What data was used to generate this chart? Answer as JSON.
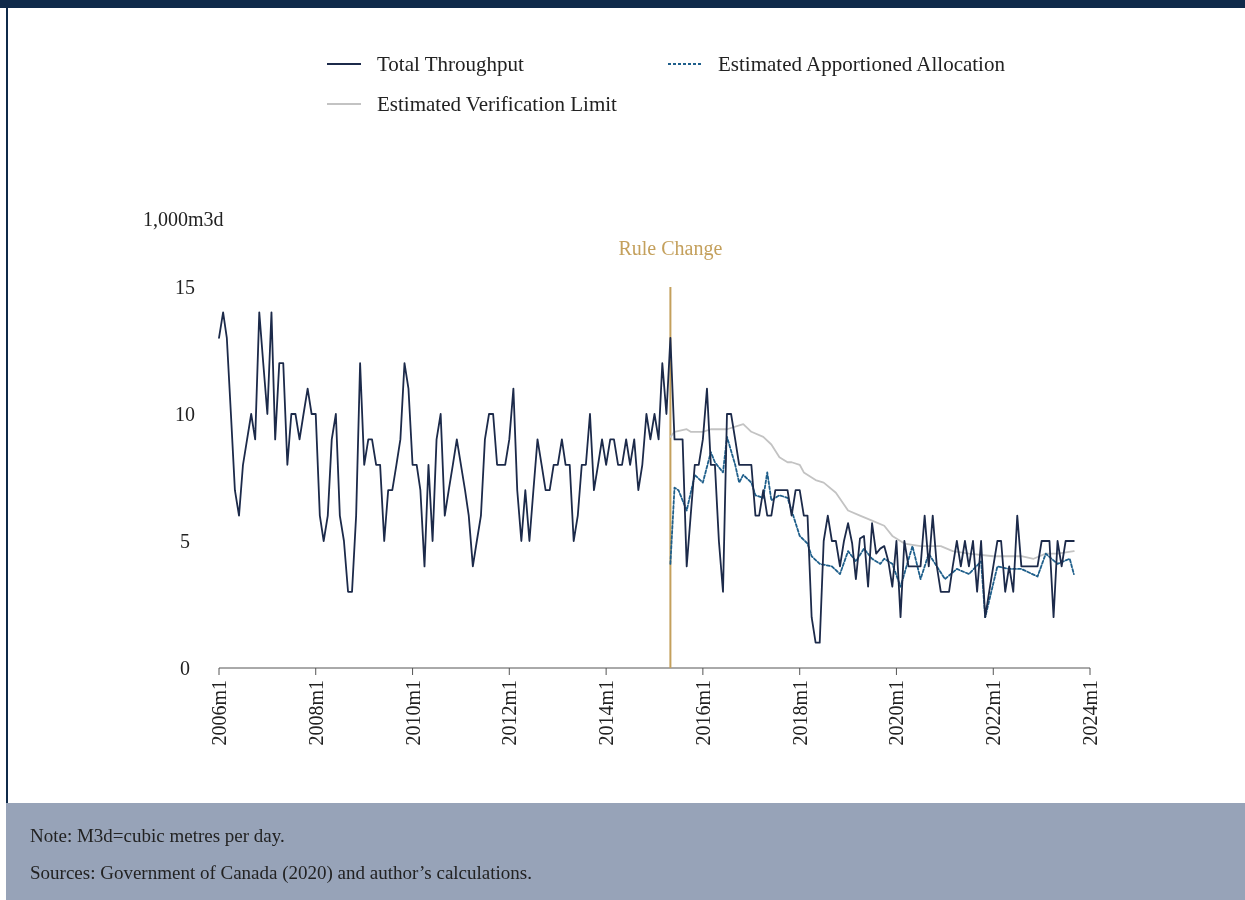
{
  "chart_data": {
    "type": "line",
    "ylabel": "1,000m3d",
    "legend": "top",
    "grid": false,
    "line_style": "solid",
    "marker": "none",
    "xlim": [
      "2006-01",
      "2024-01"
    ],
    "xticks": [
      {
        "value": "2006-01",
        "label": "2006m1"
      },
      {
        "value": "2008-01",
        "label": "2008m1"
      },
      {
        "value": "2010-01",
        "label": "2010m1"
      },
      {
        "value": "2012-01",
        "label": "2012m1"
      },
      {
        "value": "2014-01",
        "label": "2014m1"
      },
      {
        "value": "2016-01",
        "label": "2016m1"
      },
      {
        "value": "2018-01",
        "label": "2018m1"
      },
      {
        "value": "2020-01",
        "label": "2020m1"
      },
      {
        "value": "2022-01",
        "label": "2022m1"
      },
      {
        "value": "2024-01",
        "label": "2024m1"
      }
    ],
    "ylim": [
      0,
      15
    ],
    "yticks": [
      0,
      5,
      10,
      15
    ],
    "x": [
      "2006-01",
      "2006-02",
      "2006-03",
      "2006-04",
      "2006-05",
      "2006-06",
      "2006-07",
      "2006-08",
      "2006-09",
      "2006-10",
      "2006-11",
      "2006-12",
      "2007-01",
      "2007-02",
      "2007-03",
      "2007-04",
      "2007-05",
      "2007-06",
      "2007-07",
      "2007-08",
      "2007-09",
      "2007-10",
      "2007-11",
      "2007-12",
      "2008-01",
      "2008-02",
      "2008-03",
      "2008-04",
      "2008-05",
      "2008-06",
      "2008-07",
      "2008-08",
      "2008-09",
      "2008-10",
      "2008-11",
      "2008-12",
      "2009-01",
      "2009-02",
      "2009-03",
      "2009-04",
      "2009-05",
      "2009-06",
      "2009-07",
      "2009-08",
      "2009-09",
      "2009-10",
      "2009-11",
      "2009-12",
      "2010-01",
      "2010-02",
      "2010-03",
      "2010-04",
      "2010-05",
      "2010-06",
      "2010-07",
      "2010-08",
      "2010-09",
      "2010-10",
      "2010-11",
      "2010-12",
      "2011-01",
      "2011-02",
      "2011-03",
      "2011-04",
      "2011-05",
      "2011-06",
      "2011-07",
      "2011-08",
      "2011-09",
      "2011-10",
      "2011-11",
      "2011-12",
      "2012-01",
      "2012-02",
      "2012-03",
      "2012-04",
      "2012-05",
      "2012-06",
      "2012-07",
      "2012-08",
      "2012-09",
      "2012-10",
      "2012-11",
      "2012-12",
      "2013-01",
      "2013-02",
      "2013-03",
      "2013-04",
      "2013-05",
      "2013-06",
      "2013-07",
      "2013-08",
      "2013-09",
      "2013-10",
      "2013-11",
      "2013-12",
      "2014-01",
      "2014-02",
      "2014-03",
      "2014-04",
      "2014-05",
      "2014-06",
      "2014-07",
      "2014-08",
      "2014-09",
      "2014-10",
      "2014-11",
      "2014-12",
      "2015-01",
      "2015-02",
      "2015-03",
      "2015-04",
      "2015-05",
      "2015-06",
      "2015-07",
      "2015-08",
      "2015-09",
      "2015-10",
      "2015-11",
      "2015-12",
      "2016-01",
      "2016-02",
      "2016-03",
      "2016-04",
      "2016-05",
      "2016-06",
      "2016-07",
      "2016-08",
      "2016-09",
      "2016-10",
      "2016-11",
      "2016-12",
      "2017-01",
      "2017-02",
      "2017-03",
      "2017-04",
      "2017-05",
      "2017-06",
      "2017-07",
      "2017-08",
      "2017-09",
      "2017-10",
      "2017-11",
      "2017-12",
      "2018-01",
      "2018-02",
      "2018-03",
      "2018-04",
      "2018-05",
      "2018-06",
      "2018-07",
      "2018-08",
      "2018-09",
      "2018-10",
      "2018-11",
      "2018-12",
      "2019-01",
      "2019-02",
      "2019-03",
      "2019-04",
      "2019-05",
      "2019-06",
      "2019-07",
      "2019-08",
      "2019-09",
      "2019-10",
      "2019-11",
      "2019-12",
      "2020-01",
      "2020-02",
      "2020-03",
      "2020-04",
      "2020-05",
      "2020-06",
      "2020-07",
      "2020-08",
      "2020-09",
      "2020-10",
      "2020-11",
      "2020-12",
      "2021-01",
      "2021-02",
      "2021-03",
      "2021-04",
      "2021-05",
      "2021-06",
      "2021-07",
      "2021-08",
      "2021-09",
      "2021-10",
      "2021-11",
      "2021-12",
      "2022-01",
      "2022-02",
      "2022-03",
      "2022-04",
      "2022-05",
      "2022-06",
      "2022-07",
      "2022-08",
      "2022-09",
      "2022-10",
      "2022-11",
      "2022-12",
      "2023-01",
      "2023-02",
      "2023-03",
      "2023-04",
      "2023-05",
      "2023-06",
      "2023-07",
      "2023-08",
      "2023-09"
    ],
    "series": [
      {
        "name": "Total Throughput",
        "color": "#1c2a4a",
        "values": [
          13,
          14,
          13,
          10,
          7,
          6,
          8,
          9,
          10,
          9,
          14,
          12,
          10,
          14,
          9,
          12,
          12,
          8,
          10,
          10,
          9,
          10,
          11,
          10,
          10,
          6,
          5,
          6,
          9,
          10,
          6,
          5,
          3,
          3,
          6,
          12,
          8,
          9,
          9,
          8,
          8,
          5,
          7,
          7,
          8,
          9,
          12,
          11,
          8,
          8,
          7,
          4,
          8,
          5,
          9,
          10,
          6,
          7,
          8,
          9,
          8,
          7,
          6,
          4,
          5,
          6,
          9,
          10,
          10,
          8,
          8,
          8,
          9,
          11,
          7,
          5,
          7,
          5,
          7,
          9,
          8,
          7,
          7,
          8,
          8,
          9,
          8,
          8,
          5,
          6,
          8,
          8,
          10,
          7,
          8,
          9,
          8,
          9,
          9,
          8,
          8,
          9,
          8,
          9,
          7,
          8,
          10,
          9,
          10,
          9,
          12,
          10,
          13,
          9,
          9,
          9,
          4,
          6,
          8,
          8,
          9,
          11,
          8,
          8,
          5,
          3,
          10,
          10,
          9,
          8,
          8,
          8,
          8,
          6,
          6,
          7,
          6,
          6,
          7,
          7,
          7,
          7,
          6,
          7,
          7,
          6,
          6,
          2,
          1,
          1,
          5,
          6,
          5,
          5,
          4,
          5,
          5.7,
          4.9,
          3.5,
          5.1,
          5.2,
          3.2,
          5.7,
          4.5,
          4.7,
          4.8,
          4.2,
          3.2,
          5,
          2,
          5,
          4,
          4,
          4,
          4,
          6,
          4,
          6,
          4,
          3,
          3,
          3,
          4,
          5,
          4,
          5,
          4,
          5,
          3,
          5,
          2,
          3,
          4,
          5,
          5,
          3,
          4,
          3,
          6,
          4,
          4,
          4,
          4,
          4,
          5,
          5,
          5,
          2,
          5,
          4,
          5,
          5,
          5
        ]
      },
      {
        "name": "Estimated Apportioned Allocation",
        "color": "#1f5f8b",
        "line_style": "dashed",
        "x": [
          "2015-05",
          "2015-06",
          "2015-07",
          "2015-09",
          "2015-11",
          "2016-01",
          "2016-03",
          "2016-04",
          "2016-06",
          "2016-07",
          "2016-09",
          "2016-10",
          "2016-11",
          "2017-01",
          "2017-02",
          "2017-04",
          "2017-05",
          "2017-06",
          "2017-08",
          "2017-10",
          "2017-11",
          "2018-01",
          "2018-03",
          "2018-04",
          "2018-06",
          "2018-09",
          "2018-11",
          "2019-01",
          "2019-03",
          "2019-05",
          "2019-07",
          "2019-09",
          "2019-10",
          "2019-12",
          "2020-02",
          "2020-05",
          "2020-07",
          "2020-09",
          "2021-01",
          "2021-04",
          "2021-07",
          "2021-10",
          "2021-11",
          "2022-02",
          "2022-05",
          "2022-08",
          "2022-12",
          "2023-02",
          "2023-05",
          "2023-08",
          "2023-09"
        ],
        "values": [
          4.1,
          7.1,
          7.0,
          6.2,
          7.6,
          7.3,
          8.5,
          8.1,
          7.7,
          9.1,
          8.0,
          7.3,
          7.6,
          7.3,
          6.8,
          6.7,
          7.7,
          6.6,
          6.8,
          6.7,
          6.2,
          5.2,
          4.9,
          4.4,
          4.1,
          4.0,
          3.7,
          4.6,
          4.2,
          4.7,
          4.3,
          4.1,
          4.3,
          4.1,
          3.2,
          4.8,
          3.5,
          4.5,
          3.5,
          3.9,
          3.7,
          4.2,
          2.0,
          4.0,
          3.9,
          3.9,
          3.6,
          4.5,
          4.1,
          4.3,
          3.7
        ]
      },
      {
        "name": "Estimated Verification Limit",
        "color": "#c3c3c3",
        "x": [
          "2015-05",
          "2015-06",
          "2015-09",
          "2015-10",
          "2016-01",
          "2016-03",
          "2016-07",
          "2016-11",
          "2017-01",
          "2017-04",
          "2017-06",
          "2017-08",
          "2017-10",
          "2017-11",
          "2018-01",
          "2018-02",
          "2018-05",
          "2018-07",
          "2018-10",
          "2019-01",
          "2019-04",
          "2019-07",
          "2019-10",
          "2019-12",
          "2020-03",
          "2020-07",
          "2020-12",
          "2021-03",
          "2021-07",
          "2022-01",
          "2022-05",
          "2022-08",
          "2022-11",
          "2023-02",
          "2023-05",
          "2023-09"
        ],
        "values": [
          9.1,
          9.3,
          9.4,
          9.3,
          9.3,
          9.4,
          9.4,
          9.6,
          9.3,
          9.1,
          8.8,
          8.3,
          8.1,
          8.1,
          8.0,
          7.7,
          7.4,
          7.3,
          6.9,
          6.2,
          6.0,
          5.8,
          5.6,
          5.2,
          4.9,
          4.8,
          4.8,
          4.6,
          4.5,
          4.4,
          4.4,
          4.4,
          4.3,
          4.5,
          4.5,
          4.6
        ]
      }
    ],
    "ref_lines": [
      {
        "axis": "x",
        "value": "2015-05",
        "label": "Rule Change",
        "color": "#c4a05c"
      }
    ],
    "annotations": [
      "Note: M3d=cubic metres per day.",
      "Sources: Government of Canada (2020) and author’s calculations."
    ]
  }
}
